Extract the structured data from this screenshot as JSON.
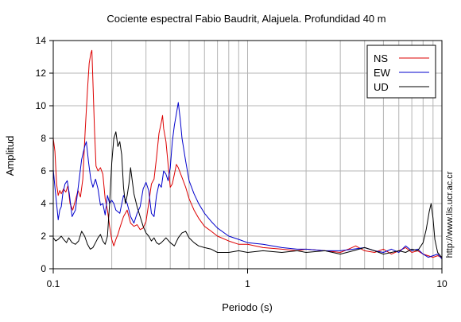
{
  "chart_data": {
    "type": "line",
    "title": "Cociente espectral Fabio Baudrit, Alajuela. Profundidad 40 m",
    "xlabel": "Periodo (s)",
    "ylabel": "Amplitud",
    "xscale": "log",
    "xlim": [
      0.1,
      10
    ],
    "ylim": [
      0,
      14
    ],
    "xticks": [
      0.1,
      1,
      10
    ],
    "xtick_labels": [
      "0.1",
      "1",
      "10"
    ],
    "yticks": [
      0,
      2,
      4,
      6,
      8,
      10,
      12,
      14
    ],
    "ytick_labels": [
      "0",
      "2",
      "4",
      "6",
      "8",
      "10",
      "12",
      "14"
    ],
    "grid": true,
    "legend_position": "top-right",
    "series": [
      {
        "name": "NS",
        "color": "#dd0000",
        "points": [
          [
            0.1,
            8.0
          ],
          [
            0.102,
            7.2
          ],
          [
            0.104,
            5.2
          ],
          [
            0.106,
            4.5
          ],
          [
            0.108,
            4.8
          ],
          [
            0.11,
            4.6
          ],
          [
            0.113,
            4.9
          ],
          [
            0.116,
            4.7
          ],
          [
            0.119,
            5.1
          ],
          [
            0.122,
            4.0
          ],
          [
            0.126,
            3.6
          ],
          [
            0.13,
            4.2
          ],
          [
            0.134,
            4.8
          ],
          [
            0.138,
            4.4
          ],
          [
            0.142,
            5.5
          ],
          [
            0.146,
            8.5
          ],
          [
            0.15,
            11.0
          ],
          [
            0.153,
            12.6
          ],
          [
            0.156,
            13.2
          ],
          [
            0.158,
            13.4
          ],
          [
            0.16,
            11.5
          ],
          [
            0.163,
            8.5
          ],
          [
            0.166,
            6.3
          ],
          [
            0.17,
            6.0
          ],
          [
            0.175,
            6.2
          ],
          [
            0.18,
            5.8
          ],
          [
            0.185,
            4.3
          ],
          [
            0.19,
            3.6
          ],
          [
            0.195,
            2.6
          ],
          [
            0.2,
            1.8
          ],
          [
            0.205,
            1.4
          ],
          [
            0.21,
            1.8
          ],
          [
            0.215,
            2.1
          ],
          [
            0.22,
            2.5
          ],
          [
            0.23,
            3.2
          ],
          [
            0.24,
            3.6
          ],
          [
            0.25,
            2.8
          ],
          [
            0.26,
            2.6
          ],
          [
            0.27,
            2.7
          ],
          [
            0.28,
            2.4
          ],
          [
            0.29,
            2.5
          ],
          [
            0.3,
            2.9
          ],
          [
            0.31,
            4.0
          ],
          [
            0.32,
            5.2
          ],
          [
            0.33,
            5.5
          ],
          [
            0.34,
            6.8
          ],
          [
            0.35,
            8.3
          ],
          [
            0.36,
            9.0
          ],
          [
            0.365,
            9.4
          ],
          [
            0.37,
            8.6
          ],
          [
            0.38,
            7.8
          ],
          [
            0.39,
            6.4
          ],
          [
            0.4,
            5.0
          ],
          [
            0.41,
            5.2
          ],
          [
            0.42,
            5.8
          ],
          [
            0.43,
            6.4
          ],
          [
            0.44,
            6.2
          ],
          [
            0.46,
            5.6
          ],
          [
            0.48,
            5.0
          ],
          [
            0.5,
            4.3
          ],
          [
            0.53,
            3.6
          ],
          [
            0.56,
            3.1
          ],
          [
            0.6,
            2.6
          ],
          [
            0.65,
            2.3
          ],
          [
            0.7,
            2.0
          ],
          [
            0.8,
            1.7
          ],
          [
            0.9,
            1.5
          ],
          [
            1.0,
            1.5
          ],
          [
            1.2,
            1.3
          ],
          [
            1.5,
            1.2
          ],
          [
            1.8,
            1.1
          ],
          [
            2.0,
            1.2
          ],
          [
            2.5,
            1.1
          ],
          [
            3.0,
            1.0
          ],
          [
            3.3,
            1.2
          ],
          [
            3.6,
            1.4
          ],
          [
            4.0,
            1.1
          ],
          [
            4.5,
            1.0
          ],
          [
            5.0,
            1.2
          ],
          [
            5.5,
            0.9
          ],
          [
            6.0,
            1.1
          ],
          [
            6.5,
            1.3
          ],
          [
            7.0,
            1.0
          ],
          [
            7.5,
            1.1
          ],
          [
            8.0,
            0.9
          ],
          [
            8.5,
            0.8
          ],
          [
            9.0,
            0.7
          ],
          [
            9.5,
            0.8
          ],
          [
            10.0,
            0.7
          ]
        ]
      },
      {
        "name": "EW",
        "color": "#0000cc",
        "points": [
          [
            0.1,
            6.1
          ],
          [
            0.102,
            5.0
          ],
          [
            0.104,
            4.0
          ],
          [
            0.106,
            3.0
          ],
          [
            0.108,
            3.6
          ],
          [
            0.11,
            3.8
          ],
          [
            0.112,
            4.6
          ],
          [
            0.115,
            5.2
          ],
          [
            0.118,
            5.4
          ],
          [
            0.121,
            4.6
          ],
          [
            0.125,
            3.2
          ],
          [
            0.13,
            3.6
          ],
          [
            0.135,
            5.2
          ],
          [
            0.14,
            6.7
          ],
          [
            0.145,
            7.5
          ],
          [
            0.148,
            7.8
          ],
          [
            0.152,
            6.5
          ],
          [
            0.156,
            5.5
          ],
          [
            0.16,
            5.0
          ],
          [
            0.165,
            5.5
          ],
          [
            0.17,
            4.9
          ],
          [
            0.175,
            3.9
          ],
          [
            0.18,
            4.0
          ],
          [
            0.185,
            3.3
          ],
          [
            0.19,
            4.5
          ],
          [
            0.195,
            4.0
          ],
          [
            0.2,
            4.2
          ],
          [
            0.205,
            4.0
          ],
          [
            0.21,
            3.6
          ],
          [
            0.22,
            3.4
          ],
          [
            0.23,
            4.5
          ],
          [
            0.24,
            4.0
          ],
          [
            0.25,
            3.2
          ],
          [
            0.26,
            2.8
          ],
          [
            0.27,
            3.4
          ],
          [
            0.28,
            3.8
          ],
          [
            0.29,
            4.9
          ],
          [
            0.3,
            5.3
          ],
          [
            0.31,
            4.8
          ],
          [
            0.32,
            3.4
          ],
          [
            0.33,
            3.2
          ],
          [
            0.34,
            4.5
          ],
          [
            0.35,
            5.2
          ],
          [
            0.36,
            5.0
          ],
          [
            0.37,
            6.0
          ],
          [
            0.38,
            5.8
          ],
          [
            0.39,
            5.4
          ],
          [
            0.4,
            6.2
          ],
          [
            0.41,
            7.8
          ],
          [
            0.42,
            8.8
          ],
          [
            0.43,
            9.5
          ],
          [
            0.44,
            10.2
          ],
          [
            0.45,
            9.2
          ],
          [
            0.46,
            8.0
          ],
          [
            0.48,
            6.6
          ],
          [
            0.5,
            5.4
          ],
          [
            0.53,
            4.6
          ],
          [
            0.56,
            4.0
          ],
          [
            0.6,
            3.4
          ],
          [
            0.65,
            2.9
          ],
          [
            0.7,
            2.5
          ],
          [
            0.8,
            2.0
          ],
          [
            0.9,
            1.8
          ],
          [
            1.0,
            1.6
          ],
          [
            1.2,
            1.5
          ],
          [
            1.5,
            1.3
          ],
          [
            1.8,
            1.2
          ],
          [
            2.0,
            1.2
          ],
          [
            2.5,
            1.1
          ],
          [
            3.0,
            1.1
          ],
          [
            3.5,
            1.2
          ],
          [
            4.0,
            1.3
          ],
          [
            4.5,
            1.1
          ],
          [
            5.0,
            1.0
          ],
          [
            5.5,
            1.2
          ],
          [
            6.0,
            1.0
          ],
          [
            6.5,
            1.4
          ],
          [
            7.0,
            1.1
          ],
          [
            7.5,
            1.2
          ],
          [
            8.0,
            0.9
          ],
          [
            8.5,
            0.7
          ],
          [
            9.0,
            0.8
          ],
          [
            9.5,
            0.9
          ],
          [
            10.0,
            0.6
          ]
        ]
      },
      {
        "name": "UD",
        "color": "#000000",
        "points": [
          [
            0.1,
            1.9
          ],
          [
            0.103,
            1.7
          ],
          [
            0.106,
            1.8
          ],
          [
            0.11,
            2.0
          ],
          [
            0.113,
            1.8
          ],
          [
            0.117,
            1.6
          ],
          [
            0.12,
            1.9
          ],
          [
            0.125,
            1.6
          ],
          [
            0.13,
            1.5
          ],
          [
            0.135,
            1.7
          ],
          [
            0.14,
            2.3
          ],
          [
            0.145,
            2.0
          ],
          [
            0.15,
            1.5
          ],
          [
            0.155,
            1.2
          ],
          [
            0.16,
            1.3
          ],
          [
            0.165,
            1.6
          ],
          [
            0.17,
            1.9
          ],
          [
            0.175,
            2.1
          ],
          [
            0.18,
            1.7
          ],
          [
            0.185,
            1.5
          ],
          [
            0.19,
            2.0
          ],
          [
            0.195,
            4.0
          ],
          [
            0.2,
            6.5
          ],
          [
            0.205,
            8.0
          ],
          [
            0.21,
            8.4
          ],
          [
            0.215,
            7.5
          ],
          [
            0.22,
            7.8
          ],
          [
            0.225,
            7.0
          ],
          [
            0.23,
            5.0
          ],
          [
            0.235,
            4.0
          ],
          [
            0.24,
            4.5
          ],
          [
            0.245,
            5.2
          ],
          [
            0.25,
            6.2
          ],
          [
            0.255,
            5.4
          ],
          [
            0.26,
            4.6
          ],
          [
            0.27,
            3.8
          ],
          [
            0.28,
            3.2
          ],
          [
            0.29,
            2.6
          ],
          [
            0.3,
            2.2
          ],
          [
            0.31,
            2.0
          ],
          [
            0.32,
            1.7
          ],
          [
            0.33,
            1.9
          ],
          [
            0.34,
            1.6
          ],
          [
            0.35,
            1.5
          ],
          [
            0.36,
            1.6
          ],
          [
            0.38,
            1.9
          ],
          [
            0.4,
            1.6
          ],
          [
            0.42,
            1.4
          ],
          [
            0.44,
            1.9
          ],
          [
            0.46,
            2.2
          ],
          [
            0.48,
            2.3
          ],
          [
            0.5,
            1.9
          ],
          [
            0.53,
            1.6
          ],
          [
            0.56,
            1.4
          ],
          [
            0.6,
            1.3
          ],
          [
            0.65,
            1.2
          ],
          [
            0.7,
            1.0
          ],
          [
            0.8,
            1.0
          ],
          [
            0.9,
            1.1
          ],
          [
            1.0,
            1.0
          ],
          [
            1.2,
            1.1
          ],
          [
            1.5,
            1.0
          ],
          [
            1.8,
            1.1
          ],
          [
            2.0,
            1.0
          ],
          [
            2.5,
            1.1
          ],
          [
            3.0,
            0.9
          ],
          [
            3.5,
            1.1
          ],
          [
            4.0,
            1.3
          ],
          [
            4.5,
            1.1
          ],
          [
            5.0,
            0.9
          ],
          [
            5.5,
            1.0
          ],
          [
            6.0,
            1.1
          ],
          [
            6.5,
            1.0
          ],
          [
            7.0,
            1.2
          ],
          [
            7.5,
            1.1
          ],
          [
            8.0,
            1.6
          ],
          [
            8.3,
            2.4
          ],
          [
            8.6,
            3.5
          ],
          [
            8.8,
            4.0
          ],
          [
            9.0,
            3.1
          ],
          [
            9.2,
            1.8
          ],
          [
            9.5,
            1.0
          ],
          [
            9.8,
            0.8
          ],
          [
            10.0,
            0.7
          ]
        ]
      }
    ]
  },
  "credit": "http://www.lis.ucr.ac.cr"
}
